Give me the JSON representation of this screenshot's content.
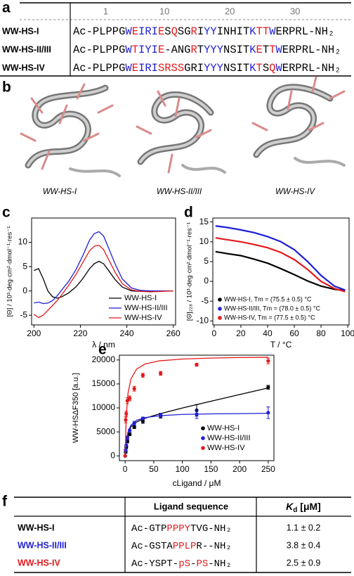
{
  "panel_labels": [
    "a",
    "b",
    "c",
    "d",
    "e",
    "f"
  ],
  "sequence_table": {
    "ticks": [
      1,
      10,
      20,
      30
    ],
    "rows": [
      {
        "name": "WW-HS-I",
        "segments": [
          {
            "text": "Ac-PLPPG",
            "color": "#000000"
          },
          {
            "text": "W",
            "color": "#1f1fd6"
          },
          {
            "text": "E",
            "color": "#e31a1c"
          },
          {
            "text": "IRI",
            "color": "#1f1fd6"
          },
          {
            "text": "E",
            "color": "#e31a1c"
          },
          {
            "text": "S",
            "color": "#000000"
          },
          {
            "text": "Q",
            "color": "#e31a1c"
          },
          {
            "text": "SG",
            "color": "#000000"
          },
          {
            "text": "R",
            "color": "#e31a1c"
          },
          {
            "text": "I",
            "color": "#000000"
          },
          {
            "text": "YY",
            "color": "#1f1fd6"
          },
          {
            "text": "I",
            "color": "#000000"
          },
          {
            "text": "NHIT",
            "color": "#000000"
          },
          {
            "text": "K",
            "color": "#1f1fd6"
          },
          {
            "text": "TT",
            "color": "#e31a1c"
          },
          {
            "text": "W",
            "color": "#1f1fd6"
          },
          {
            "text": "ERPRL-NH₂",
            "color": "#000000"
          }
        ]
      },
      {
        "name": "WW-HS-II/III",
        "segments": [
          {
            "text": "Ac-PLPPG",
            "color": "#000000"
          },
          {
            "text": "W",
            "color": "#1f1fd6"
          },
          {
            "text": "T",
            "color": "#e31a1c"
          },
          {
            "text": "IYI",
            "color": "#1f1fd6"
          },
          {
            "text": "E",
            "color": "#e31a1c"
          },
          {
            "text": "-ANG",
            "color": "#000000"
          },
          {
            "text": "R",
            "color": "#e31a1c"
          },
          {
            "text": "T",
            "color": "#000000"
          },
          {
            "text": "YYY",
            "color": "#1f1fd6"
          },
          {
            "text": "NSIT",
            "color": "#000000"
          },
          {
            "text": "K",
            "color": "#1f1fd6"
          },
          {
            "text": "E",
            "color": "#e31a1c"
          },
          {
            "text": "T",
            "color": "#000000"
          },
          {
            "text": "T",
            "color": "#e31a1c"
          },
          {
            "text": "W",
            "color": "#1f1fd6"
          },
          {
            "text": "ERPRL-NH₂",
            "color": "#000000"
          }
        ]
      },
      {
        "name": "WW-HS-IV",
        "segments": [
          {
            "text": "Ac-PLPPG",
            "color": "#000000"
          },
          {
            "text": "W",
            "color": "#1f1fd6"
          },
          {
            "text": "E",
            "color": "#e31a1c"
          },
          {
            "text": "IRI",
            "color": "#1f1fd6"
          },
          {
            "text": "SRSS",
            "color": "#e31a1c"
          },
          {
            "text": "GRI",
            "color": "#000000"
          },
          {
            "text": "YYY",
            "color": "#1f1fd6"
          },
          {
            "text": "NSIT",
            "color": "#000000"
          },
          {
            "text": "K",
            "color": "#1f1fd6"
          },
          {
            "text": "T",
            "color": "#e31a1c"
          },
          {
            "text": "S",
            "color": "#000000"
          },
          {
            "text": "Q",
            "color": "#e31a1c"
          },
          {
            "text": "W",
            "color": "#1f1fd6"
          },
          {
            "text": "ERPRL-NH₂",
            "color": "#000000"
          }
        ]
      }
    ]
  },
  "structures": {
    "labels": [
      "WW-HS-I",
      "WW-HS-II/III",
      "WW-HS-IV"
    ]
  },
  "chart_data": [
    {
      "type": "line",
      "xlabel": "λ / nm",
      "ylabel": "[Θ] / 10³·deg·cm²·dmol⁻¹·res⁻¹",
      "xlim": [
        199,
        261
      ],
      "ylim": [
        -7,
        15
      ],
      "xticks": [
        200,
        220,
        240,
        260
      ],
      "yticks": [
        -5,
        0,
        5,
        10
      ],
      "legend_position": "lower right",
      "legend_marker": "line",
      "x": [
        200,
        202,
        204,
        206,
        208,
        210,
        212,
        215,
        218,
        221,
        224,
        226,
        228,
        230,
        232,
        235,
        238,
        242,
        246,
        250,
        255,
        260
      ],
      "series": [
        {
          "name": "WW-HS-I",
          "color": "#000000",
          "values": [
            4.2,
            4.6,
            2.5,
            0,
            -1.2,
            -1.5,
            -1.2,
            -0.4,
            0.8,
            2.5,
            4.6,
            5.6,
            6.1,
            5.6,
            4.3,
            2.3,
            0.8,
            0,
            -0.1,
            -0.1,
            0,
            0
          ]
        },
        {
          "name": "WW-HS-II/III",
          "color": "#1f1fd6",
          "values": [
            -2.5,
            -2.3,
            -2.6,
            -2.5,
            -2.0,
            -1.0,
            0.2,
            2.0,
            4.3,
            7.2,
            10.5,
            11.8,
            12.2,
            11.3,
            9.0,
            5.5,
            2.5,
            0.6,
            0.1,
            0,
            0,
            0
          ]
        },
        {
          "name": "WW-HS-IV",
          "color": "#e31a1c",
          "values": [
            -4.8,
            -5.5,
            -5.0,
            -4.0,
            -3.0,
            -2.0,
            -0.8,
            1.2,
            3.3,
            5.8,
            8.3,
            9.2,
            9.4,
            8.5,
            6.6,
            3.8,
            1.5,
            0.2,
            -0.1,
            -0.2,
            -0.1,
            0
          ]
        }
      ]
    },
    {
      "type": "line",
      "xlabel": "T / °C",
      "ylabel": "[Θ]₂₂₈ / 10³·deg·cm²·dmol⁻¹·res⁻¹",
      "xlim": [
        -1,
        101
      ],
      "ylim": [
        -11,
        16
      ],
      "xticks": [
        0,
        20,
        40,
        60,
        80,
        100
      ],
      "yticks": [
        -10,
        -5,
        0,
        5,
        10,
        15
      ],
      "legend_position": "lower left",
      "legend_marker": "dot",
      "x": [
        1,
        10,
        20,
        30,
        40,
        50,
        60,
        70,
        80,
        90,
        98
      ],
      "series": [
        {
          "name": "WW-HS-I, Tm = (75.5 ± 0.5) °C",
          "color": "#000000",
          "values": [
            7.5,
            7,
            6.5,
            5.6,
            4.6,
            3.2,
            1.7,
            0.1,
            -1.2,
            -2,
            -2.3
          ]
        },
        {
          "name": "WW-HS-II/III, Tm = (78.0 ± 0.5) °C",
          "color": "#1f1fd6",
          "values": [
            14,
            13.6,
            13,
            12.3,
            11.3,
            10,
            8,
            5,
            1.5,
            -1.2,
            -2.2
          ]
        },
        {
          "name": "WW-HS-IV, Tm = (77.5 ± 0.5) °C",
          "color": "#e31a1c",
          "values": [
            11,
            10.5,
            10,
            9.3,
            8.5,
            7.3,
            5.5,
            3,
            0,
            -1.8,
            -2.6
          ]
        }
      ]
    },
    {
      "type": "scatter",
      "xlabel": "cLigand / μM",
      "ylabel": "WW-HSΔF350 [a.u.]",
      "xlim": [
        -10,
        260
      ],
      "ylim": [
        -1000,
        21000
      ],
      "xticks": [
        0,
        50,
        100,
        150,
        200,
        250
      ],
      "yticks": [
        0,
        5000,
        10000,
        15000,
        20000
      ],
      "legend_position": "lower right",
      "legend_marker": "dot",
      "x": [
        0,
        1,
        2,
        4,
        8,
        16,
        31,
        62,
        125,
        250
      ],
      "fit_x": [
        0,
        2,
        5,
        10,
        20,
        35,
        60,
        100,
        150,
        200,
        250
      ],
      "series": [
        {
          "name": "WW-HS-I",
          "color": "#000000",
          "values": [
            0,
            800,
            1800,
            3000,
            4500,
            6000,
            7200,
            8300,
            9500,
            14300
          ],
          "errors": [
            0,
            200,
            200,
            300,
            300,
            300,
            400,
            400,
            1200,
            400
          ],
          "fit": [
            0,
            3050,
            4820,
            6040,
            7060,
            7850,
            8760,
            9980,
            11400,
            12790,
            14160
          ]
        },
        {
          "name": "WW-HS-II/III",
          "color": "#1f1fd6",
          "values": [
            0,
            1200,
            2200,
            3800,
            5300,
            6800,
            7800,
            8500,
            8700,
            9000
          ],
          "errors": [
            0,
            200,
            200,
            300,
            300,
            400,
            300,
            400,
            900,
            1200
          ],
          "fit": [
            0,
            2970,
            4950,
            6360,
            7420,
            7990,
            8370,
            8640,
            8750,
            8810,
            8880
          ]
        },
        {
          "name": "WW-HS-IV",
          "color": "#e31a1c",
          "values": [
            0,
            7500,
            8800,
            11500,
            12000,
            14000,
            16800,
            17200,
            19000,
            19800
          ],
          "errors": [
            0,
            600,
            500,
            600,
            500,
            500,
            400,
            400,
            300,
            600
          ],
          "fit": [
            0,
            8320,
            13000,
            16000,
            18090,
            19160,
            19820,
            20190,
            20390,
            20500,
            20550
          ]
        }
      ]
    }
  ],
  "ligand_table": {
    "header_sequence": "Ligand sequence",
    "header_kd": [
      "K",
      "d",
      " [μM]"
    ],
    "rows": [
      {
        "name": "WW-HS-I",
        "color": "#000000",
        "kd": "1.1 ± 0.2",
        "segments": [
          {
            "text": "Ac-GTP",
            "color": "#000000"
          },
          {
            "text": "PPPY",
            "color": "#e31a1c"
          },
          {
            "text": "TVG-NH₂",
            "color": "#000000"
          }
        ]
      },
      {
        "name": "WW-HS-II/III",
        "color": "#1f1fd6",
        "kd": "3.8 ± 0.4",
        "segments": [
          {
            "text": "Ac-GSTA",
            "color": "#000000"
          },
          {
            "text": "PPLP",
            "color": "#e31a1c"
          },
          {
            "text": "R--NH₂",
            "color": "#000000"
          }
        ]
      },
      {
        "name": "WW-HS-IV",
        "color": "#e31a1c",
        "kd": "2.5 ± 0.9",
        "segments": [
          {
            "text": "Ac-YSPT-",
            "color": "#000000"
          },
          {
            "text": "pS",
            "color": "#e31a1c"
          },
          {
            "text": "-",
            "color": "#000000"
          },
          {
            "text": "PS",
            "color": "#e31a1c"
          },
          {
            "text": "-NH₂",
            "color": "#000000"
          }
        ]
      }
    ]
  }
}
